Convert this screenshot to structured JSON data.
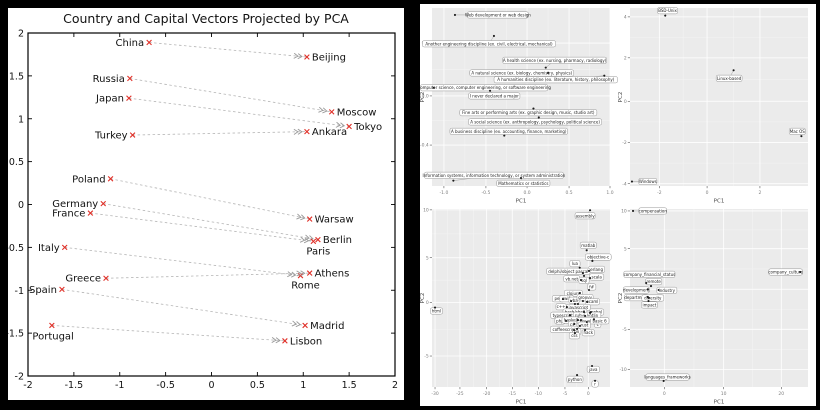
{
  "chart_data": [
    {
      "id": "country-capital-pca",
      "type": "scatter",
      "title": "Country and Capital Vectors Projected by PCA",
      "xlim": [
        -2,
        2
      ],
      "ylim": [
        -2,
        2
      ],
      "xticks": [
        -2,
        -1.5,
        -1,
        -0.5,
        0,
        0.5,
        1,
        1.5,
        2
      ],
      "yticks": [
        -2,
        -1.5,
        -1,
        -0.5,
        0,
        0.5,
        1,
        1.5,
        2
      ],
      "grid": false,
      "marker_color": "#e03028",
      "line_color": "#b5b5b5",
      "pairs": [
        {
          "country": "China",
          "capital": "Beijing",
          "c": [
            -0.68,
            1.89
          ],
          "k": [
            1.04,
            1.72
          ],
          "clp": "left",
          "klp": "right"
        },
        {
          "country": "Russia",
          "capital": "Moscow",
          "c": [
            -0.89,
            1.47
          ],
          "k": [
            1.31,
            1.08
          ],
          "clp": "left",
          "klp": "right"
        },
        {
          "country": "Japan",
          "capital": "Tokyo",
          "c": [
            -0.9,
            1.24
          ],
          "k": [
            1.5,
            0.91
          ],
          "clp": "left",
          "klp": "right"
        },
        {
          "country": "Turkey",
          "capital": "Ankara",
          "c": [
            -0.86,
            0.81
          ],
          "k": [
            1.04,
            0.85
          ],
          "clp": "left",
          "klp": "right"
        },
        {
          "country": "Poland",
          "capital": "Warsaw",
          "c": [
            -1.1,
            0.3
          ],
          "k": [
            1.07,
            -0.17
          ],
          "clp": "left",
          "klp": "right"
        },
        {
          "country": "Germany",
          "capital": "Berlin",
          "c": [
            -1.18,
            0.01
          ],
          "k": [
            1.16,
            -0.41
          ],
          "clp": "left",
          "klp": "right"
        },
        {
          "country": "France",
          "capital": "Paris",
          "c": [
            -1.32,
            -0.1
          ],
          "k": [
            1.11,
            -0.43
          ],
          "clp": "left",
          "klp": "below"
        },
        {
          "country": "Italy",
          "capital": "Rome",
          "c": [
            -1.6,
            -0.5
          ],
          "k": [
            0.97,
            -0.83
          ],
          "clp": "left",
          "klp": "below"
        },
        {
          "country": "Greece",
          "capital": "Athens",
          "c": [
            -1.15,
            -0.86
          ],
          "k": [
            1.07,
            -0.8
          ],
          "clp": "left",
          "klp": "right"
        },
        {
          "country": "Spain",
          "capital": "Madrid",
          "c": [
            -1.63,
            -0.99
          ],
          "k": [
            1.02,
            -1.41
          ],
          "clp": "left",
          "klp": "right"
        },
        {
          "country": "Portugal",
          "capital": "Lisbon",
          "c": [
            -1.74,
            -1.41
          ],
          "k": [
            0.8,
            -1.59
          ],
          "clp": "below",
          "klp": "right"
        }
      ]
    },
    {
      "id": "majors-pca",
      "type": "scatter",
      "xlabel": "PC1",
      "ylabel": "PC2",
      "xtick_labels": [
        "-1.0",
        "-0.5",
        "0.0",
        "0.5",
        "1.0"
      ],
      "xtick_pos": [
        6.7,
        30.3,
        53.4,
        77.0,
        100.0
      ],
      "ytick_labels": [
        "0.4",
        "0.0",
        "-0.4"
      ],
      "ytick_pos": [
        19.7,
        49.4,
        77.0
      ],
      "items": [
        {
          "label": "Web development or web design",
          "x": 12.9,
          "y": 3.9,
          "lx": 37.0,
          "ly": 3.9
        },
        {
          "label": "Another engineering discipline (ex. civil, electrical, mechanical)",
          "x": 34.8,
          "y": 15.7,
          "lx": 32.0,
          "ly": 20.1
        },
        {
          "label": "A health science (ex. nursing, pharmacy, radiology)",
          "x": 63.9,
          "y": 33.5,
          "lx": 68.9,
          "ly": 29.4
        },
        {
          "label": "A natural science (ex. biology, chemistry, physics)",
          "x": 65.2,
          "y": 36.5,
          "lx": 50.4,
          "ly": 36.5
        },
        {
          "label": "A humanities discipline (ex. literature, history, philosophy)",
          "x": 96.8,
          "y": 38.0,
          "lx": 74.7,
          "ly": 40.3
        },
        {
          "label": "Computer science, computer engineering, or software engineering",
          "x": 1.0,
          "y": 44.8,
          "lx": 29.2,
          "ly": 44.8
        },
        {
          "label": "I never declared a major",
          "x": 32.6,
          "y": 46.5,
          "lx": 35.0,
          "ly": 49.4
        },
        {
          "label": "Fine arts or performing arts (ex. graphic design, music, studio art)",
          "x": 57.0,
          "y": 56.5,
          "lx": 54.1,
          "ly": 58.8
        },
        {
          "label": "A social science (ex. anthropology, psychology, political science)",
          "x": 60.0,
          "y": 61.5,
          "lx": 57.9,
          "ly": 64.0
        },
        {
          "label": "A business discipline (ex. accounting, finance, marketing)",
          "x": 40.6,
          "y": 71.7,
          "lx": 43.1,
          "ly": 69.3
        },
        {
          "label": "Information systems, information technology, or system administration",
          "x": 12.0,
          "y": 97.0,
          "lx": 34.8,
          "ly": 94.0
        },
        {
          "label": "Mathematics or statistics",
          "x": 50.0,
          "y": 95.5,
          "lx": 51.3,
          "ly": 98.5
        }
      ]
    },
    {
      "id": "os-pca",
      "type": "scatter",
      "xlabel": "PC1",
      "ylabel": "PC2",
      "xtick_labels": [
        "-2",
        "0",
        "2"
      ],
      "xtick_pos": [
        16.5,
        43.3,
        73.0
      ],
      "ytick_labels": [
        "4",
        "2",
        "0",
        "-2",
        "-4"
      ],
      "ytick_pos": [
        5.0,
        28.0,
        52.4,
        75.6,
        98.7
      ],
      "items": [
        {
          "label": "BSD-Unix",
          "x": 19.8,
          "y": 4.3,
          "lx": 21.1,
          "ly": 1.5
        },
        {
          "label": "Linux-based",
          "x": 58.2,
          "y": 35.0,
          "lx": 55.7,
          "ly": 39.5
        },
        {
          "label": "Mac OS",
          "x": 96.3,
          "y": 72.0,
          "lx": 94.0,
          "ly": 69.3
        },
        {
          "label": "Windows",
          "x": 1.1,
          "y": 97.5,
          "lx": 10.0,
          "ly": 97.5
        }
      ]
    },
    {
      "id": "languages-pca",
      "type": "scatter",
      "xlabel": "PC1",
      "ylabel": "PC2",
      "xtick_labels": [
        "-30",
        "-25",
        "-20",
        "-15",
        "-10",
        "-5",
        "0"
      ],
      "xtick_pos": [
        1.7,
        15.7,
        30.7,
        45.1,
        59.7,
        74.7,
        87.8
      ],
      "ytick_labels": [
        "10",
        "5",
        "0",
        "-5"
      ],
      "ytick_pos": [
        0.5,
        27.4,
        52.6,
        82.6
      ],
      "items": [
        {
          "label": "assembly",
          "x": 88.8,
          "y": 0.7,
          "lx": 86.0,
          "ly": 3.8
        },
        {
          "label": "matlab",
          "x": 86.9,
          "y": 23.2,
          "lx": 87.8,
          "ly": 20.4
        },
        {
          "label": "objective-c",
          "x": 90.1,
          "y": 29.2,
          "lx": 93.4,
          "ly": 27.0
        },
        {
          "label": "lua",
          "x": 83.0,
          "y": 33.0,
          "lx": 80.3,
          "ly": 30.7
        },
        {
          "label": "erlang",
          "x": 88.2,
          "y": 34.8,
          "lx": 92.5,
          "ly": 33.9
        },
        {
          "label": "delphi/object pascal",
          "x": 84.8,
          "y": 36.0,
          "lx": 76.6,
          "ly": 35.0
        },
        {
          "label": "vb.net",
          "x": 83.7,
          "y": 39.9,
          "lx": 78.5,
          "ly": 39.2
        },
        {
          "label": "sql",
          "x": 85.4,
          "y": 37.6,
          "lx": 85.4,
          "ly": 40.1
        },
        {
          "label": "scala",
          "x": 88.8,
          "y": 38.8,
          "lx": 92.5,
          "ly": 38.2
        },
        {
          "label": "f#",
          "x": 88.2,
          "y": 45.5,
          "lx": 89.7,
          "ly": 43.8
        },
        {
          "label": "clojure",
          "x": 83.1,
          "y": 47.2,
          "lx": 79.4,
          "ly": 47.4
        },
        {
          "label": "perl",
          "x": 73.6,
          "y": 50.6,
          "lx": 71.0,
          "ly": 50.4
        },
        {
          "label": "swift",
          "x": 78.1,
          "y": 51.7,
          "lx": 75.7,
          "ly": 50.4
        },
        {
          "label": "vba",
          "x": 80.3,
          "y": 53.4,
          "lx": 79.8,
          "ly": 51.3
        },
        {
          "label": "groovy",
          "x": 84.8,
          "y": 51.7,
          "lx": 86.0,
          "ly": 49.8
        },
        {
          "label": "ocaml",
          "x": 87.1,
          "y": 52.2,
          "lx": 90.1,
          "ly": 52.1
        },
        {
          "label": "c++",
          "x": 75.8,
          "y": 55.1,
          "lx": 72.5,
          "ly": 54.9
        },
        {
          "label": "javascript",
          "x": 82.0,
          "y": 53.4,
          "lx": 82.2,
          "ly": 55.3
        },
        {
          "label": "bash/shell",
          "x": 85.4,
          "y": 57.9,
          "lx": 80.3,
          "ly": 57.9
        },
        {
          "label": "cobol",
          "x": 89.3,
          "y": 57.9,
          "lx": 92.5,
          "ly": 57.9
        },
        {
          "label": "typescript",
          "x": 77.5,
          "y": 59.6,
          "lx": 73.4,
          "ly": 59.7
        },
        {
          "label": "ruby",
          "x": 86.0,
          "y": 60.1,
          "lx": 82.8,
          "ly": 59.7
        },
        {
          "label": "kotlin",
          "x": 88.8,
          "y": 58.4,
          "lx": 90.3,
          "ly": 59.7
        },
        {
          "label": "c",
          "x": 91.0,
          "y": 62.0,
          "lx": 93.1,
          "ly": 64.8
        },
        {
          "label": "php",
          "x": 75.3,
          "y": 62.9,
          "lx": 71.9,
          "ly": 62.9
        },
        {
          "label": "haskell",
          "x": 82.0,
          "y": 62.4,
          "lx": 78.1,
          "ly": 62.4
        },
        {
          "label": "julia",
          "x": 83.7,
          "y": 62.4,
          "lx": 86.0,
          "ly": 62.0
        },
        {
          "label": "visual basic 6",
          "x": 87.0,
          "y": 63.5,
          "lx": 90.5,
          "ly": 62.8
        },
        {
          "label": "c#",
          "x": 80.0,
          "y": 64.6,
          "lx": 79.0,
          "ly": 64.8
        },
        {
          "label": "rust",
          "x": 83.1,
          "y": 65.7,
          "lx": 85.6,
          "ly": 65.3
        },
        {
          "label": "coffeescript",
          "x": 79.8,
          "y": 68.0,
          "lx": 74.3,
          "ly": 67.6
        },
        {
          "label": "go",
          "x": 81.5,
          "y": 67.4,
          "lx": 81.3,
          "ly": 68.9
        },
        {
          "label": "hack",
          "x": 86.0,
          "y": 68.0,
          "lx": 87.8,
          "ly": 69.5
        },
        {
          "label": "css",
          "x": 80.3,
          "y": 69.7,
          "lx": 80.0,
          "ly": 71.2
        },
        {
          "label": "java",
          "x": 89.9,
          "y": 88.2,
          "lx": 90.6,
          "ly": 90.1
        },
        {
          "label": "python",
          "x": 81.5,
          "y": 93.3,
          "lx": 80.3,
          "ly": 95.7
        },
        {
          "label": "r",
          "x": 91.6,
          "y": 96.5,
          "lx": 91.6,
          "ly": 98.3
        },
        {
          "label": "html",
          "x": 1.7,
          "y": 55.4,
          "lx": 2.5,
          "ly": 57.3
        }
      ]
    },
    {
      "id": "job-factors-pca",
      "type": "scatter",
      "xlabel": "PC1",
      "ylabel": "PC2",
      "xtick_labels": [
        "0",
        "10",
        "20"
      ],
      "xtick_pos": [
        19.3,
        52.6,
        85.0
      ],
      "ytick_labels": [
        "10",
        "5",
        "0",
        "-5",
        "-10"
      ],
      "ytick_pos": [
        1.1,
        22.3,
        45.1,
        67.6,
        90.1
      ],
      "items": [
        {
          "label": "compensation",
          "x": 1.7,
          "y": 1.1,
          "lx": 12.8,
          "ly": 1.1
        },
        {
          "label": "company_financial_status",
          "x": 9.1,
          "y": 41.6,
          "lx": 10.9,
          "ly": 36.7
        },
        {
          "label": "remote",
          "x": 11.8,
          "y": 43.3,
          "lx": 13.3,
          "ly": 40.8
        },
        {
          "label": "development",
          "x": 10.0,
          "y": 45.1,
          "lx": 3.5,
          "ly": 45.5
        },
        {
          "label": "industry",
          "x": 16.1,
          "y": 45.5,
          "lx": 20.7,
          "ly": 45.7
        },
        {
          "label": "department",
          "x": 10.0,
          "y": 49.4,
          "lx": 3.5,
          "ly": 49.8
        },
        {
          "label": "diversity",
          "x": 10.6,
          "y": 50.0,
          "lx": 12.8,
          "ly": 50.0
        },
        {
          "label": "impact",
          "x": 10.4,
          "y": 51.7,
          "lx": 10.9,
          "ly": 53.9
        },
        {
          "label": "company_culture",
          "x": 95.7,
          "y": 35.4,
          "lx": 87.4,
          "ly": 35.4
        },
        {
          "label": "languages_frameworks",
          "x": 18.9,
          "y": 96.6,
          "lx": 21.1,
          "ly": 94.4
        }
      ]
    }
  ],
  "style": {
    "panel_bg": "#ebebeb",
    "grid_major": "#ffffff",
    "grid_minor": "#f4f4f4",
    "tick_label_color": "#7f7f7f",
    "axis_title_color": "#4d4d4d",
    "point_color": "#1a1a1a",
    "label_box_border": "#8a8a8a"
  }
}
